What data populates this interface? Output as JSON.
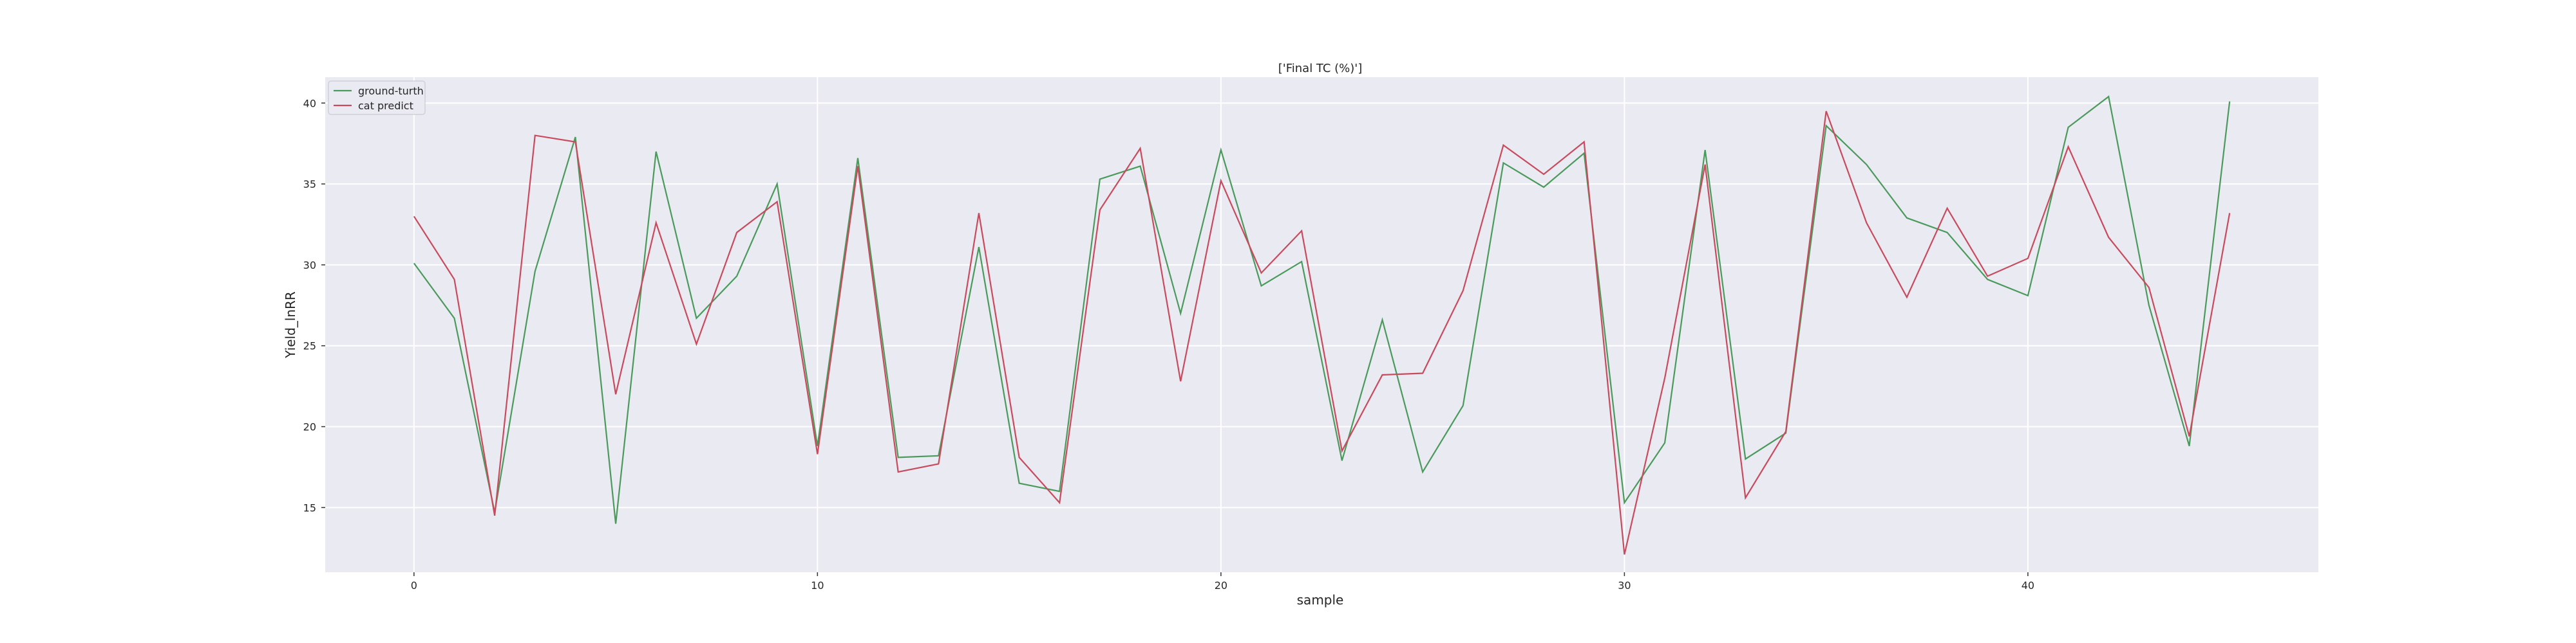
{
  "chart_data": {
    "type": "line",
    "title": "['Final TC (%)']",
    "xlabel": "sample",
    "ylabel": "Yield_lnRR",
    "xlim": [
      -2.2,
      47.2
    ],
    "ylim": [
      11.0,
      41.6
    ],
    "x_ticks": [
      0,
      10,
      20,
      30,
      40
    ],
    "y_ticks": [
      15,
      20,
      25,
      30,
      35,
      40
    ],
    "grid": true,
    "legend_position": "top-left",
    "x": [
      0,
      1,
      2,
      3,
      4,
      5,
      6,
      7,
      8,
      9,
      10,
      11,
      12,
      13,
      14,
      15,
      16,
      17,
      18,
      19,
      20,
      21,
      22,
      23,
      24,
      25,
      26,
      27,
      28,
      29,
      30,
      31,
      32,
      33,
      34,
      35,
      36,
      37,
      38,
      39,
      40,
      41,
      42,
      43,
      44,
      45
    ],
    "series": [
      {
        "name": "ground-turth",
        "color": "#4a9a5c",
        "values": [
          30.1,
          26.7,
          14.7,
          29.6,
          37.9,
          14.0,
          37.0,
          26.7,
          29.3,
          35.0,
          18.8,
          36.6,
          18.1,
          18.2,
          31.1,
          16.5,
          16.0,
          35.3,
          36.1,
          27.0,
          37.1,
          28.7,
          30.2,
          17.9,
          26.6,
          17.2,
          21.3,
          36.3,
          34.8,
          36.9,
          15.3,
          19.0,
          37.1,
          18.0,
          19.6,
          38.6,
          36.2,
          32.9,
          32.0,
          29.1,
          28.1,
          38.5,
          40.4,
          27.5,
          18.8,
          40.1
        ]
      },
      {
        "name": "cat predict",
        "color": "#c94a5d",
        "values": [
          33.0,
          29.1,
          14.5,
          38.0,
          37.6,
          22.0,
          32.6,
          25.1,
          32.0,
          33.9,
          18.3,
          36.1,
          17.2,
          17.7,
          33.2,
          18.1,
          15.3,
          33.4,
          37.2,
          22.8,
          35.2,
          29.5,
          32.1,
          18.5,
          23.2,
          23.3,
          28.4,
          37.4,
          35.6,
          37.6,
          12.1,
          23.0,
          36.2,
          15.6,
          19.7,
          39.5,
          32.6,
          28.0,
          33.5,
          29.3,
          30.4,
          37.3,
          31.7,
          28.6,
          19.4,
          33.2
        ]
      }
    ]
  }
}
